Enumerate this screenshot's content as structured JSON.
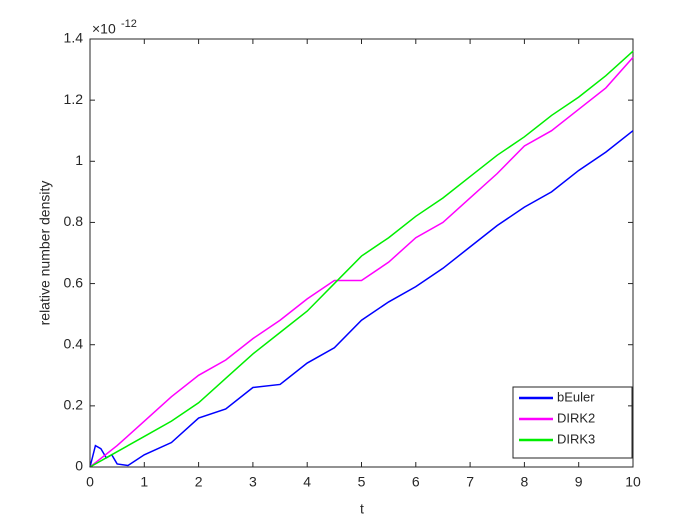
{
  "chart_data": {
    "type": "line",
    "xlabel": "t",
    "ylabel": "relative number density",
    "y_multiplier": {
      "base": "×10",
      "exponent": -12
    },
    "xlim": [
      0,
      10
    ],
    "ylim": [
      0,
      1.4
    ],
    "xticks": [
      0,
      1,
      2,
      3,
      4,
      5,
      6,
      7,
      8,
      9,
      10
    ],
    "yticks": [
      0,
      0.2,
      0.4,
      0.6,
      0.8,
      1,
      1.2,
      1.4
    ],
    "grid": false,
    "legend_position": "lower-right",
    "series": [
      {
        "name": "bEuler",
        "color": "#0000ff",
        "x": [
          0,
          0.1,
          0.2,
          0.3,
          0.4,
          0.5,
          0.7,
          1,
          1.5,
          2,
          2.5,
          3,
          3.5,
          4,
          4.5,
          5,
          5.5,
          6,
          6.5,
          7,
          7.5,
          8,
          8.5,
          9,
          9.5,
          10
        ],
        "values": [
          0,
          0.07,
          0.06,
          0.03,
          0.04,
          0.01,
          0.005,
          0.04,
          0.08,
          0.16,
          0.19,
          0.26,
          0.27,
          0.34,
          0.39,
          0.48,
          0.54,
          0.59,
          0.65,
          0.72,
          0.79,
          0.85,
          0.9,
          0.97,
          1.03,
          1.1
        ]
      },
      {
        "name": "DIRK2",
        "color": "#ff00ff",
        "x": [
          0,
          0.5,
          1,
          1.5,
          2,
          2.5,
          3,
          3.5,
          4,
          4.5,
          5,
          5.5,
          6,
          6.5,
          7,
          7.5,
          8,
          8.5,
          9,
          9.5,
          10
        ],
        "values": [
          0,
          0.07,
          0.15,
          0.23,
          0.3,
          0.35,
          0.42,
          0.48,
          0.55,
          0.61,
          0.61,
          0.67,
          0.75,
          0.8,
          0.88,
          0.96,
          1.05,
          1.1,
          1.17,
          1.24,
          1.34
        ]
      },
      {
        "name": "DIRK3",
        "color": "#00ee00",
        "x": [
          0,
          0.5,
          1,
          1.5,
          2,
          2.5,
          3,
          3.5,
          4,
          4.5,
          5,
          5.5,
          6,
          6.5,
          7,
          7.5,
          8,
          8.5,
          9,
          9.5,
          10
        ],
        "values": [
          0,
          0.05,
          0.1,
          0.15,
          0.21,
          0.29,
          0.37,
          0.44,
          0.51,
          0.6,
          0.69,
          0.75,
          0.82,
          0.88,
          0.95,
          1.02,
          1.08,
          1.15,
          1.21,
          1.28,
          1.36
        ]
      }
    ]
  }
}
